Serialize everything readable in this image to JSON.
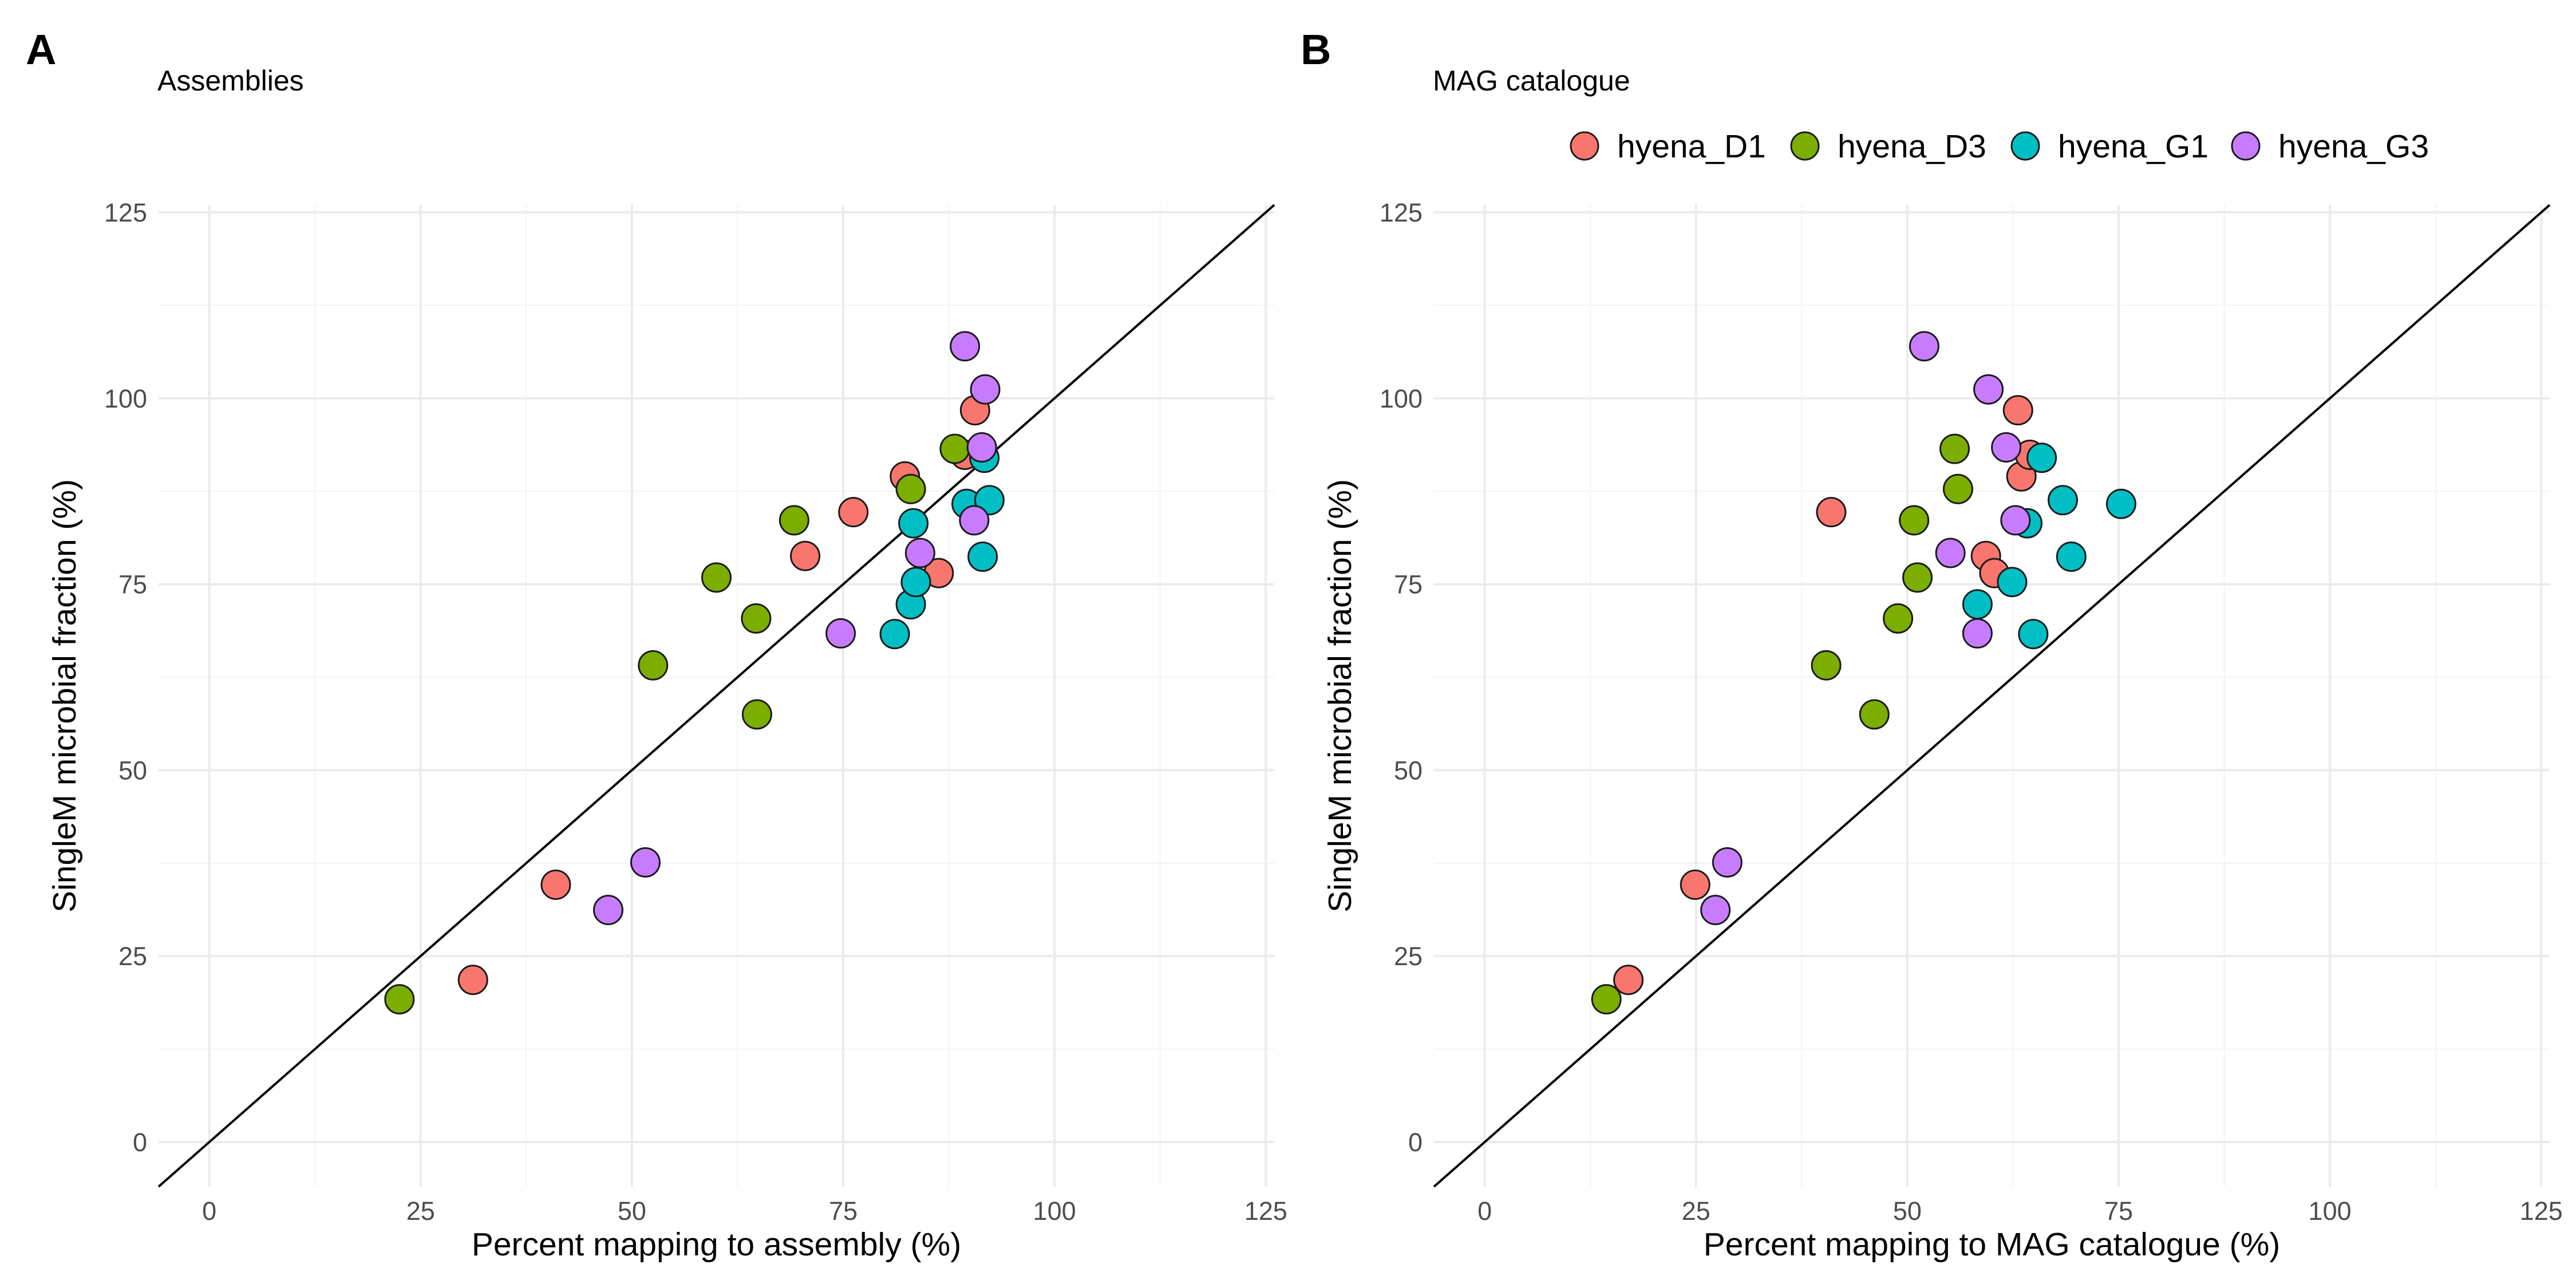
{
  "colors": {
    "hyena_D1": "#F8766D",
    "hyena_D3": "#7CAE00",
    "hyena_G1": "#00BFC4",
    "hyena_G3": "#C77CFF"
  },
  "legend": {
    "items": [
      "hyena_D1",
      "hyena_D3",
      "hyena_G1",
      "hyena_G3"
    ]
  },
  "chart_data": [
    {
      "type": "scatter",
      "panel": "A",
      "title": "Assemblies",
      "xlabel": "Percent mapping to assembly (%)",
      "ylabel": "SingleM microbial fraction (%)",
      "xlim": [
        -6,
        126
      ],
      "ylim": [
        -6,
        126
      ],
      "xticks": [
        0,
        25,
        50,
        75,
        100,
        125
      ],
      "yticks": [
        0,
        25,
        50,
        75,
        100,
        125
      ],
      "reference_line": "y = x",
      "grid": true,
      "series": [
        {
          "name": "hyena_D1",
          "x": [
            31.2,
            41.0,
            70.5,
            76.2,
            82.3,
            86.3,
            89.4,
            90.6
          ],
          "y": [
            21.8,
            34.6,
            78.8,
            84.7,
            89.5,
            76.5,
            92.4,
            98.4
          ]
        },
        {
          "name": "hyena_D3",
          "x": [
            22.5,
            52.5,
            60.0,
            64.7,
            64.8,
            69.2,
            83.0,
            88.2
          ],
          "y": [
            19.2,
            64.1,
            75.9,
            70.4,
            57.5,
            83.6,
            87.8,
            93.2
          ]
        },
        {
          "name": "hyena_G1",
          "x": [
            81.1,
            83.0,
            83.3,
            83.6,
            89.6,
            91.5,
            91.7,
            92.3
          ],
          "y": [
            68.3,
            72.3,
            83.2,
            75.3,
            85.8,
            78.7,
            92.0,
            86.3
          ]
        },
        {
          "name": "hyena_G3",
          "x": [
            47.2,
            51.6,
            74.7,
            84.1,
            89.4,
            90.5,
            91.4,
            91.8
          ],
          "y": [
            31.2,
            37.6,
            68.4,
            79.2,
            107.0,
            83.6,
            93.4,
            101.2
          ]
        }
      ]
    },
    {
      "type": "scatter",
      "panel": "B",
      "title": "MAG catalogue",
      "xlabel": "Percent mapping to MAG catalogue (%)",
      "ylabel": "SingleM microbial fraction (%)",
      "xlim": [
        -6,
        126
      ],
      "ylim": [
        -6,
        126
      ],
      "xticks": [
        0,
        25,
        50,
        75,
        100,
        125
      ],
      "yticks": [
        0,
        25,
        50,
        75,
        100,
        125
      ],
      "reference_line": "y = x",
      "grid": true,
      "legend_position": "top",
      "series": [
        {
          "name": "hyena_D1",
          "x": [
            17.0,
            24.9,
            41.0,
            59.3,
            60.3,
            63.5,
            63.1,
            64.5
          ],
          "y": [
            21.8,
            34.6,
            84.7,
            78.8,
            76.5,
            89.5,
            98.4,
            92.4
          ]
        },
        {
          "name": "hyena_D3",
          "x": [
            14.4,
            40.4,
            46.1,
            48.9,
            50.8,
            51.2,
            55.6,
            56.0
          ],
          "y": [
            19.2,
            64.1,
            57.5,
            70.4,
            83.6,
            75.9,
            93.2,
            87.8
          ]
        },
        {
          "name": "hyena_G1",
          "x": [
            58.3,
            62.4,
            64.2,
            64.9,
            65.9,
            68.4,
            69.4,
            75.3
          ],
          "y": [
            72.3,
            75.3,
            83.2,
            68.3,
            92.0,
            86.3,
            78.7,
            85.8
          ]
        },
        {
          "name": "hyena_G3",
          "x": [
            27.3,
            28.7,
            52.0,
            55.1,
            58.3,
            59.6,
            61.7,
            62.8
          ],
          "y": [
            31.2,
            37.6,
            107.0,
            79.2,
            68.4,
            101.2,
            93.4,
            83.6
          ]
        }
      ]
    }
  ]
}
